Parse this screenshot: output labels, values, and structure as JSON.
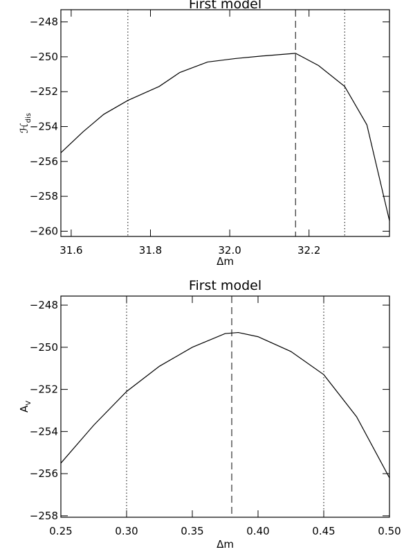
{
  "chart_data": [
    {
      "type": "line",
      "title": "First model",
      "x_label": "Δm",
      "y_label_main": "ℋ",
      "y_label_sub": "dis",
      "xlim": [
        31.574,
        32.403
      ],
      "ylim": [
        -260.3,
        -247.3
      ],
      "xticks": [
        31.6,
        31.8,
        {
          "value": 32,
          "label": "32.0"
        },
        32.2
      ],
      "yticks": [
        {
          "value": -248,
          "label": "−248"
        },
        {
          "value": -250,
          "label": "−250"
        },
        {
          "value": -252,
          "label": "−252"
        },
        {
          "value": -254,
          "label": "−254"
        },
        {
          "value": -256,
          "label": "−256"
        },
        {
          "value": -258,
          "label": "−258"
        },
        {
          "value": -260,
          "label": "−260"
        }
      ],
      "vlines": [
        {
          "value": 31.743,
          "style": "dotted"
        },
        {
          "value": 32.166,
          "style": "dashed"
        },
        {
          "value": 32.29,
          "style": "dotted"
        }
      ],
      "series": [
        {
          "color": "#000000",
          "x": [
            31.574,
            31.63,
            31.682,
            31.743,
            31.822,
            31.874,
            31.944,
            32.014,
            32.084,
            32.166,
            32.224,
            32.29,
            32.346,
            32.403
          ],
          "values": [
            -255.5,
            -254.3,
            -253.3,
            -252.5,
            -251.7,
            -250.9,
            -250.3,
            -250.1,
            -249.95,
            -249.8,
            -250.5,
            -251.7,
            -253.9,
            -259.4
          ]
        }
      ]
    },
    {
      "type": "line",
      "title": "First model",
      "x_label": "Δm",
      "y_label_main": "A",
      "y_label_sub": "V",
      "xlim": [
        0.25,
        0.5
      ],
      "ylim": [
        -258.07,
        -247.57
      ],
      "xticks": [
        0.25,
        {
          "value": 0.3,
          "label": "0.30"
        },
        0.35,
        {
          "value": 0.4,
          "label": "0.40"
        },
        0.45,
        {
          "value": 0.5,
          "label": "0.50"
        }
      ],
      "yticks": [
        {
          "value": -248,
          "label": "−248"
        },
        {
          "value": -250,
          "label": "−250"
        },
        {
          "value": -252,
          "label": "−252"
        },
        {
          "value": -254,
          "label": "−254"
        },
        {
          "value": -256,
          "label": "−256"
        },
        {
          "value": -258,
          "label": "−258"
        }
      ],
      "vlines": [
        {
          "value": 0.3,
          "style": "dotted"
        },
        {
          "value": 0.38,
          "style": "dashed"
        },
        {
          "value": 0.45,
          "style": "dotted"
        }
      ],
      "series": [
        {
          "color": "#000000",
          "x": [
            0.25,
            0.275,
            0.3,
            0.325,
            0.35,
            0.375,
            0.385,
            0.4,
            0.425,
            0.45,
            0.475,
            0.5
          ],
          "values": [
            -255.5,
            -253.7,
            -252.1,
            -250.9,
            -250.0,
            -249.35,
            -249.3,
            -249.5,
            -250.2,
            -251.3,
            -253.3,
            -256.2
          ]
        }
      ]
    }
  ]
}
